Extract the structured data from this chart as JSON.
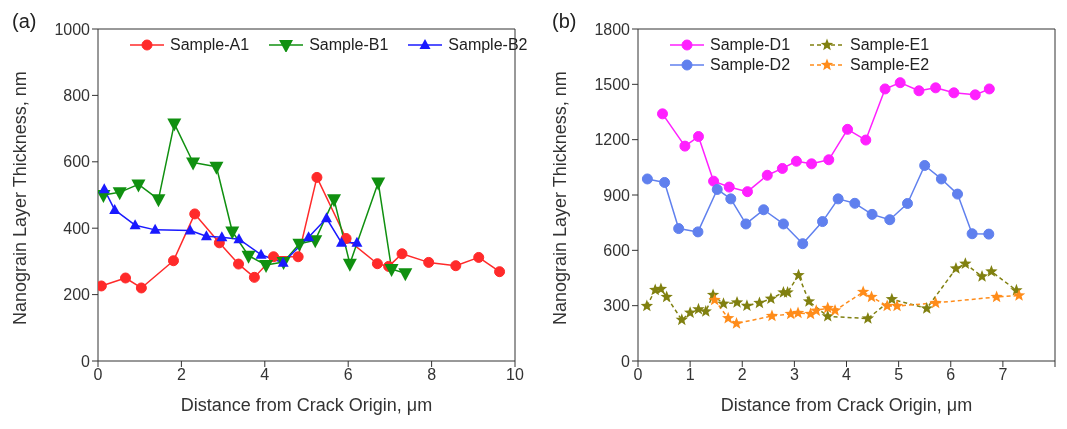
{
  "chart_data": [
    {
      "type": "line",
      "annotations": [
        "(a)"
      ],
      "xlabel": "Distance from Crack Origin, μm",
      "ylabel": "Nanograin Layer Thickness, nm",
      "xlim": [
        0,
        10
      ],
      "xticks": [
        0,
        2,
        4,
        6,
        8,
        10
      ],
      "ylim": [
        0,
        1000
      ],
      "yticks": [
        0,
        200,
        400,
        600,
        800,
        1000
      ],
      "grid": false,
      "legend": "top",
      "line_style": "solid",
      "series": [
        {
          "name": "Sample-A1",
          "color": "#ff2a2a",
          "marker": "circle",
          "x": [
            0.08,
            0.66,
            1.04,
            1.81,
            2.32,
            2.91,
            3.37,
            3.75,
            4.21,
            4.8,
            5.25,
            5.95,
            6.7,
            6.97,
            7.29,
            7.93,
            8.58,
            9.13,
            9.63
          ],
          "values": [
            226,
            250,
            220,
            302,
            443,
            356,
            292,
            252,
            314,
            314,
            553,
            369,
            293,
            285,
            323,
            297,
            287,
            312,
            269
          ]
        },
        {
          "name": "Sample-B1",
          "color": "#109010",
          "marker": "triangle-down",
          "x": [
            0.13,
            0.52,
            0.97,
            1.45,
            1.83,
            2.28,
            2.84,
            3.22,
            3.61,
            4.03,
            4.45,
            4.83,
            5.21,
            5.66,
            6.04,
            6.72,
            7.04,
            7.37
          ],
          "values": [
            500,
            508,
            532,
            487,
            715,
            598,
            585,
            390,
            317,
            289,
            298,
            353,
            364,
            487,
            293,
            538,
            277,
            264
          ]
        },
        {
          "name": "Sample-B2",
          "color": "#1a1aff",
          "marker": "triangle",
          "x": [
            0.15,
            0.4,
            0.89,
            1.37,
            2.21,
            2.6,
            2.97,
            3.38,
            3.91,
            4.44,
            5.05,
            5.48,
            5.84,
            6.21
          ],
          "values": [
            517,
            455,
            409,
            395,
            393,
            376,
            373,
            367,
            320,
            296,
            373,
            430,
            356,
            356
          ]
        }
      ]
    },
    {
      "type": "line",
      "annotations": [
        "(b)"
      ],
      "xlabel": "Distance from Crack Origin, μm",
      "ylabel": "Nanograin Layer Thickness, nm",
      "xlim": [
        0,
        8
      ],
      "xticks": [
        0,
        1,
        2,
        3,
        4,
        5,
        6,
        7,
        {
          "value": 8,
          "label": null
        }
      ],
      "ylim": [
        0,
        1800
      ],
      "yticks": [
        0,
        300,
        600,
        900,
        1200,
        1500,
        1800
      ],
      "grid": false,
      "legend": "top",
      "series": [
        {
          "name": "Sample-D1",
          "color": "#ff20ff",
          "marker": "circle",
          "line_style": "solid",
          "x": [
            0.47,
            0.9,
            1.16,
            1.45,
            1.75,
            2.1,
            2.48,
            2.77,
            3.04,
            3.33,
            3.66,
            4.02,
            4.37,
            4.74,
            5.03,
            5.39,
            5.71,
            6.06,
            6.47,
            6.74
          ],
          "values": [
            1340,
            1165,
            1217,
            975,
            943,
            918,
            1007,
            1044,
            1083,
            1069,
            1091,
            1256,
            1198,
            1475,
            1509,
            1465,
            1481,
            1454,
            1443,
            1475
          ]
        },
        {
          "name": "Sample-E1",
          "color": "#808010",
          "marker": "star",
          "line_style": "dashed",
          "x": [
            0.17,
            0.33,
            0.44,
            0.55,
            0.84,
            1.0,
            1.16,
            1.3,
            1.44,
            1.64,
            1.9,
            2.09,
            2.33,
            2.55,
            2.79,
            2.87,
            3.08,
            3.28,
            3.64,
            4.41,
            4.87,
            5.54,
            6.1,
            6.28,
            6.6,
            6.78,
            7.26
          ],
          "values": [
            298,
            385,
            390,
            347,
            223,
            262,
            280,
            269,
            358,
            310,
            317,
            299,
            315,
            337,
            372,
            372,
            465,
            323,
            242,
            230,
            335,
            285,
            501,
            527,
            458,
            485,
            383
          ]
        },
        {
          "name": "Sample-D2",
          "color": "#6080ee",
          "marker": "circle",
          "line_style": "solid",
          "x": [
            0.18,
            0.51,
            0.78,
            1.15,
            1.52,
            1.78,
            2.07,
            2.41,
            2.79,
            3.16,
            3.54,
            3.84,
            4.16,
            4.49,
            4.83,
            5.17,
            5.5,
            5.82,
            6.13,
            6.41,
            6.73
          ],
          "values": [
            987,
            968,
            718,
            700,
            930,
            879,
            743,
            820,
            743,
            636,
            756,
            879,
            855,
            795,
            766,
            854,
            1060,
            987,
            905,
            690,
            688
          ]
        },
        {
          "name": "Sample-E2",
          "color": "#ff8c1a",
          "marker": "star",
          "line_style": "dashed",
          "x": [
            1.47,
            1.73,
            1.89,
            2.57,
            2.93,
            3.07,
            3.31,
            3.42,
            3.64,
            3.78,
            4.32,
            4.48,
            4.78,
            4.97,
            5.71,
            6.88,
            7.31
          ],
          "values": [
            331,
            232,
            203,
            244,
            255,
            260,
            255,
            273,
            287,
            274,
            374,
            347,
            298,
            298,
            315,
            347,
            355
          ]
        }
      ]
    }
  ]
}
